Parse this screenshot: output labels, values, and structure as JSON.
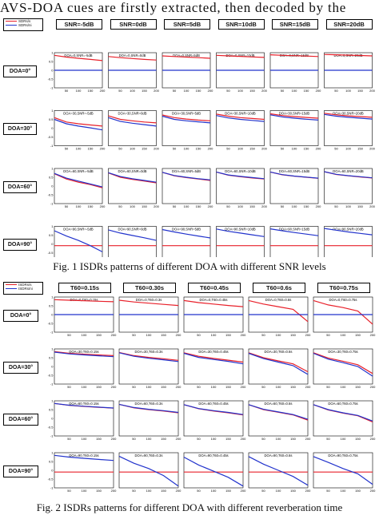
{
  "header_text": "AVS-DOA cues are firstly extracted, then decoded by the",
  "colors": {
    "red_series": "#e8202a",
    "blue_series": "#2233cc"
  },
  "fig1": {
    "legend": [
      "SDRs/s",
      "SDRs/ni"
    ],
    "columns": [
      "SNR=-5dB",
      "SNR=0dB",
      "SNR=5dB",
      "SNR=10dB",
      "SNR=15dB",
      "SNR=20dB"
    ],
    "rows": [
      "DOA=0°",
      "DOA=30°",
      "DOA=60°",
      "DOA=90°"
    ],
    "titles": [
      [
        "DOA=0,SNR=-5dB",
        "DOA=0,SNR=0dB",
        "DOA=0,SNR=5dB",
        "DOA=0,SNR=10dB",
        "DOA=0,SNR=15dB",
        "DOA=0,SNR=20dB"
      ],
      [
        "DOA=30,SNR=-5dB",
        "DOA=30,SNR=0dB",
        "DOA=30,SNR=5dB",
        "DOA=30,SNR=10dB",
        "DOA=30,SNR=15dB",
        "DOA=30,SNR=20dB"
      ],
      [
        "DOA=60,SNR=-5dB",
        "DOA=60,SNR=0dB",
        "DOA=60,SNR=5dB",
        "DOA=60,SNR=10dB",
        "DOA=60,SNR=15dB",
        "DOA=60,SNR=20dB"
      ],
      [
        "DOA=90,SNR=-5dB",
        "DOA=90,SNR=0dB",
        "DOA=90,SNR=5dB",
        "DOA=90,SNR=10dB",
        "DOA=90,SNR=15dB",
        "DOA=90,SNR=20dB"
      ]
    ],
    "yticks": [
      "1",
      "0.5",
      "0",
      "-0.5",
      "-1"
    ],
    "xticks": [
      "50",
      "100",
      "150",
      "200"
    ],
    "caption": "Fig. 1   ISDRs patterns of different DOA with different SNR levels"
  },
  "fig2": {
    "legend": [
      "ISDRs/s",
      "ISDRs/ni"
    ],
    "columns": [
      "T60=0.15s",
      "T60=0.30s",
      "T60=0.45s",
      "T60=0.6s",
      "T60=0.75s"
    ],
    "rows": [
      "DOA=0°",
      "DOA=30°",
      "DOA=60°",
      "DOA=90°"
    ],
    "titles": [
      [
        "DOA=0,T60=0.15s",
        "DOA=0,T60=0.3s",
        "DOA=0,T60=0.45s",
        "DOA=0,T60=0.6s",
        "DOA=0,T60=0.75s"
      ],
      [
        "DOA=30,T60=0.15s",
        "DOA=30,T60=0.3s",
        "DOA=30,T60=0.45s",
        "DOA=30,T60=0.6s",
        "DOA=30,T60=0.75s"
      ],
      [
        "DOA=60,T60=0.15s",
        "DOA=60,T60=0.3s",
        "DOA=60,T60=0.45s",
        "DOA=60,T60=0.6s",
        "DOA=60,T60=0.75s"
      ],
      [
        "DOA=90,T60=0.15s",
        "DOA=90,T60=0.3s",
        "DOA=90,T60=0.45s",
        "DOA=90,T60=0.6s",
        "DOA=90,T60=0.75s"
      ]
    ],
    "yticks": [
      "1",
      "0.5",
      "0",
      "-0.5",
      "-1"
    ],
    "xticks": [
      "50",
      "100",
      "150",
      "200"
    ],
    "caption": "Fig. 2   ISDRs patterns for different DOA with different reverberation time"
  },
  "chart_data": [
    {
      "type": "line",
      "title": "Fig. 1   ISDRs patterns of different DOA with different SNR levels",
      "x": [
        0,
        50,
        100,
        150,
        200
      ],
      "xlim": [
        0,
        200
      ],
      "ylim": [
        -1,
        1
      ],
      "grid": false,
      "legend_position": "top-left",
      "panels": [
        {
          "row": "DOA=0°",
          "red": [
            [
              0.85,
              0.75,
              0.68,
              0.62,
              0.55
            ],
            [
              0.78,
              0.72,
              0.67,
              0.62,
              0.58
            ],
            [
              0.82,
              0.78,
              0.75,
              0.72,
              0.68
            ],
            [
              0.85,
              0.82,
              0.79,
              0.76,
              0.73
            ],
            [
              0.88,
              0.85,
              0.83,
              0.81,
              0.78
            ],
            [
              0.9,
              0.88,
              0.86,
              0.84,
              0.82
            ]
          ],
          "blue": [
            [
              0,
              0,
              0,
              0,
              0
            ],
            [
              0,
              0,
              0,
              0,
              0
            ],
            [
              0,
              0,
              0,
              0,
              0
            ],
            [
              0,
              0,
              0,
              0,
              0
            ],
            [
              0,
              0,
              0,
              0,
              0
            ],
            [
              0,
              0,
              0,
              0,
              0
            ]
          ]
        },
        {
          "row": "DOA=30°",
          "red": [
            [
              0.6,
              0.35,
              0.25,
              0.18,
              0.12
            ],
            [
              0.7,
              0.5,
              0.42,
              0.35,
              0.3
            ],
            [
              0.75,
              0.6,
              0.52,
              0.46,
              0.42
            ],
            [
              0.8,
              0.68,
              0.6,
              0.55,
              0.5
            ],
            [
              0.82,
              0.72,
              0.66,
              0.61,
              0.57
            ],
            [
              0.85,
              0.76,
              0.7,
              0.66,
              0.62
            ]
          ],
          "blue": [
            [
              0.5,
              0.25,
              0.12,
              0.02,
              -0.1
            ],
            [
              0.6,
              0.38,
              0.28,
              0.2,
              0.12
            ],
            [
              0.68,
              0.5,
              0.42,
              0.36,
              0.3
            ],
            [
              0.72,
              0.58,
              0.5,
              0.44,
              0.38
            ],
            [
              0.76,
              0.64,
              0.57,
              0.51,
              0.46
            ],
            [
              0.78,
              0.68,
              0.62,
              0.57,
              0.52
            ]
          ]
        },
        {
          "row": "DOA=60°",
          "red": [
            [
              0.7,
              0.4,
              0.22,
              0.08,
              -0.1
            ],
            [
              0.75,
              0.5,
              0.38,
              0.28,
              0.18
            ],
            [
              0.78,
              0.58,
              0.48,
              0.4,
              0.32
            ],
            [
              0.8,
              0.62,
              0.53,
              0.46,
              0.4
            ],
            [
              0.8,
              0.64,
              0.56,
              0.5,
              0.44
            ],
            [
              0.82,
              0.66,
              0.58,
              0.52,
              0.46
            ]
          ],
          "blue": [
            [
              0.72,
              0.45,
              0.28,
              0.12,
              -0.05
            ],
            [
              0.76,
              0.54,
              0.42,
              0.32,
              0.22
            ],
            [
              0.78,
              0.6,
              0.5,
              0.42,
              0.35
            ],
            [
              0.8,
              0.63,
              0.55,
              0.48,
              0.42
            ],
            [
              0.8,
              0.65,
              0.57,
              0.51,
              0.45
            ],
            [
              0.82,
              0.67,
              0.59,
              0.53,
              0.47
            ]
          ]
        },
        {
          "row": "DOA=90°",
          "red": [
            [
              -0.1,
              -0.1,
              -0.1,
              -0.1,
              -0.1
            ],
            [
              -0.1,
              -0.1,
              -0.1,
              -0.1,
              -0.1
            ],
            [
              -0.1,
              -0.1,
              -0.1,
              -0.1,
              -0.1
            ],
            [
              -0.1,
              -0.1,
              -0.1,
              -0.1,
              -0.1
            ],
            [
              -0.1,
              -0.1,
              -0.1,
              -0.1,
              -0.1
            ],
            [
              -0.1,
              -0.1,
              -0.1,
              -0.1,
              -0.1
            ]
          ],
          "blue": [
            [
              0.75,
              0.45,
              0.2,
              -0.1,
              -0.45
            ],
            [
              0.8,
              0.62,
              0.48,
              0.35,
              0.2
            ],
            [
              0.82,
              0.68,
              0.56,
              0.45,
              0.34
            ],
            [
              0.85,
              0.72,
              0.62,
              0.52,
              0.42
            ],
            [
              0.86,
              0.75,
              0.65,
              0.56,
              0.47
            ],
            [
              0.88,
              0.78,
              0.68,
              0.6,
              0.52
            ]
          ]
        }
      ]
    },
    {
      "type": "line",
      "title": "Fig. 2   ISDRs patterns for different DOA with different reverberation time",
      "x": [
        0,
        50,
        100,
        150,
        200
      ],
      "xlim": [
        0,
        200
      ],
      "ylim": [
        -1,
        1
      ],
      "grid": false,
      "legend_position": "top-left",
      "panels": [
        {
          "row": "DOA=0°",
          "red": [
            [
              0.85,
              0.82,
              0.79,
              0.76,
              0.73
            ],
            [
              0.82,
              0.72,
              0.65,
              0.58,
              0.52
            ],
            [
              0.8,
              0.68,
              0.6,
              0.52,
              0.45
            ],
            [
              0.8,
              0.6,
              0.45,
              0.3,
              -0.4
            ],
            [
              0.8,
              0.55,
              0.4,
              0.2,
              -0.55
            ]
          ],
          "blue": [
            [
              0,
              0,
              0,
              0,
              0
            ],
            [
              0,
              0,
              0,
              0,
              0
            ],
            [
              0,
              0,
              0,
              0,
              0
            ],
            [
              0,
              0,
              0,
              0,
              0
            ],
            [
              0,
              0,
              0,
              0,
              0
            ]
          ]
        },
        {
          "row": "DOA=30°",
          "red": [
            [
              0.85,
              0.75,
              0.7,
              0.66,
              0.62
            ],
            [
              0.8,
              0.62,
              0.52,
              0.44,
              0.35
            ],
            [
              0.78,
              0.58,
              0.46,
              0.36,
              0.25
            ],
            [
              0.78,
              0.5,
              0.32,
              0.15,
              -0.3
            ],
            [
              0.78,
              0.48,
              0.3,
              0.1,
              -0.4
            ]
          ],
          "blue": [
            [
              0.82,
              0.72,
              0.66,
              0.61,
              0.56
            ],
            [
              0.78,
              0.58,
              0.47,
              0.38,
              0.28
            ],
            [
              0.75,
              0.52,
              0.4,
              0.29,
              0.15
            ],
            [
              0.75,
              0.45,
              0.25,
              0.05,
              -0.45
            ],
            [
              0.75,
              0.42,
              0.22,
              0.0,
              -0.55
            ]
          ]
        },
        {
          "row": "DOA=60°",
          "red": [
            [
              0.85,
              0.74,
              0.68,
              0.63,
              0.58
            ],
            [
              0.8,
              0.6,
              0.5,
              0.42,
              0.32
            ],
            [
              0.78,
              0.55,
              0.42,
              0.32,
              0.2
            ],
            [
              0.78,
              0.5,
              0.35,
              0.2,
              -0.1
            ],
            [
              0.78,
              0.48,
              0.3,
              0.15,
              -0.2
            ]
          ],
          "blue": [
            [
              0.85,
              0.75,
              0.69,
              0.64,
              0.59
            ],
            [
              0.8,
              0.62,
              0.52,
              0.44,
              0.34
            ],
            [
              0.78,
              0.56,
              0.44,
              0.34,
              0.22
            ],
            [
              0.78,
              0.52,
              0.37,
              0.22,
              -0.05
            ],
            [
              0.78,
              0.5,
              0.32,
              0.17,
              -0.15
            ]
          ]
        },
        {
          "row": "DOA=90°",
          "red": [
            [
              -0.1,
              -0.1,
              -0.1,
              -0.1,
              -0.1
            ],
            [
              -0.1,
              -0.1,
              -0.1,
              -0.1,
              -0.1
            ],
            [
              -0.1,
              -0.1,
              -0.1,
              -0.1,
              -0.1
            ],
            [
              -0.1,
              -0.1,
              -0.1,
              -0.1,
              -0.1
            ],
            [
              -0.1,
              -0.1,
              -0.1,
              -0.1,
              -0.1
            ]
          ],
          "blue": [
            [
              0.85,
              0.75,
              0.68,
              0.62,
              0.56
            ],
            [
              0.8,
              0.4,
              0.1,
              -0.3,
              -0.9
            ],
            [
              0.75,
              0.3,
              -0.05,
              -0.4,
              -0.9
            ],
            [
              0.78,
              0.35,
              0.0,
              -0.35,
              -0.85
            ],
            [
              0.78,
              0.45,
              0.1,
              -0.2,
              -0.8
            ]
          ]
        }
      ]
    }
  ]
}
